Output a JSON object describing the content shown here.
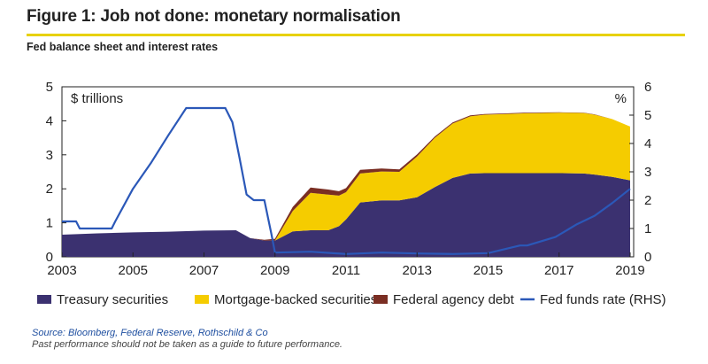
{
  "figure": {
    "title": "Figure 1: Job not done: monetary normalisation",
    "subtitle": "Fed balance sheet and interest rates"
  },
  "colors": {
    "treasury": "#3b3170",
    "mbs": "#f5cc00",
    "agency": "#7a2e23",
    "fedfunds": "#2b58b8",
    "title_rule": "#e8d100"
  },
  "chart_data": {
    "type": "area",
    "left_axis": {
      "unit_label": "$ trillions",
      "ylim": [
        0,
        5
      ],
      "ticks": [
        "0",
        "1",
        "2",
        "3",
        "4",
        "5"
      ]
    },
    "right_axis": {
      "unit_label": "%",
      "ylim": [
        0,
        6
      ],
      "ticks": [
        "0",
        "1",
        "2",
        "3",
        "4",
        "5",
        "6"
      ]
    },
    "x_axis": {
      "xlim": [
        2003,
        2019.1
      ],
      "ticks": [
        "2003",
        "2005",
        "2007",
        "2009",
        "2011",
        "2013",
        "2015",
        "2017",
        "2019"
      ]
    },
    "grid": false,
    "legend_position": "bottom",
    "x": [
      2003,
      2004,
      2005,
      2006,
      2007,
      2007.9,
      2008.3,
      2008.7,
      2009,
      2009.5,
      2010,
      2010.5,
      2010.8,
      2011,
      2011.4,
      2012,
      2012.5,
      2013,
      2013.5,
      2014,
      2014.5,
      2014.9,
      2015.5,
      2016,
      2017,
      2017.7,
      2018,
      2018.5,
      2019
    ],
    "series": [
      {
        "name": "Treasury securities",
        "axis": "left",
        "kind": "stacked-area",
        "values": [
          0.65,
          0.69,
          0.72,
          0.74,
          0.77,
          0.78,
          0.55,
          0.48,
          0.48,
          0.75,
          0.78,
          0.78,
          0.9,
          1.1,
          1.6,
          1.66,
          1.66,
          1.75,
          2.05,
          2.32,
          2.45,
          2.46,
          2.46,
          2.46,
          2.46,
          2.45,
          2.42,
          2.35,
          2.25
        ]
      },
      {
        "name": "Mortgage-backed securities",
        "axis": "left",
        "kind": "stacked-area",
        "values": [
          0,
          0,
          0,
          0,
          0,
          0,
          0,
          0,
          0,
          0.6,
          1.1,
          1.05,
          0.9,
          0.8,
          0.85,
          0.85,
          0.84,
          1.2,
          1.45,
          1.6,
          1.68,
          1.72,
          1.74,
          1.76,
          1.78,
          1.78,
          1.76,
          1.7,
          1.58
        ]
      },
      {
        "name": "Federal agency debt",
        "axis": "left",
        "kind": "stacked-area",
        "values": [
          0,
          0,
          0,
          0,
          0,
          0,
          0,
          0.02,
          0.05,
          0.12,
          0.16,
          0.15,
          0.13,
          0.12,
          0.11,
          0.09,
          0.07,
          0.06,
          0.04,
          0.03,
          0.03,
          0.02,
          0.02,
          0.02,
          0.01,
          0.01,
          0.01,
          0,
          0
        ]
      },
      {
        "name": "Fed funds rate (RHS)",
        "axis": "right",
        "kind": "line",
        "x": [
          2003,
          2003.4,
          2003.5,
          2004.0,
          2004.4,
          2004.5,
          2005.0,
          2005.5,
          2006.0,
          2006.5,
          2007.0,
          2007.6,
          2007.8,
          2008.0,
          2008.2,
          2008.4,
          2008.7,
          2008.9,
          2009.0,
          2010,
          2011,
          2012,
          2013,
          2014,
          2015,
          2015.9,
          2016.1,
          2016.9,
          2017.3,
          2017.5,
          2018.0,
          2018.5,
          2019.0
        ],
        "values": [
          1.25,
          1.25,
          1.0,
          1.0,
          1.0,
          1.25,
          2.4,
          3.3,
          4.3,
          5.25,
          5.25,
          5.25,
          4.75,
          3.5,
          2.2,
          2.0,
          2.0,
          0.8,
          0.15,
          0.18,
          0.1,
          0.15,
          0.12,
          0.1,
          0.13,
          0.4,
          0.4,
          0.7,
          1.0,
          1.15,
          1.45,
          1.9,
          2.4
        ]
      }
    ]
  },
  "source": {
    "line1": "Source: Bloomberg, Federal Reserve, Rothschild & Co",
    "line2": "Past performance should not be taken as a guide to future performance."
  }
}
